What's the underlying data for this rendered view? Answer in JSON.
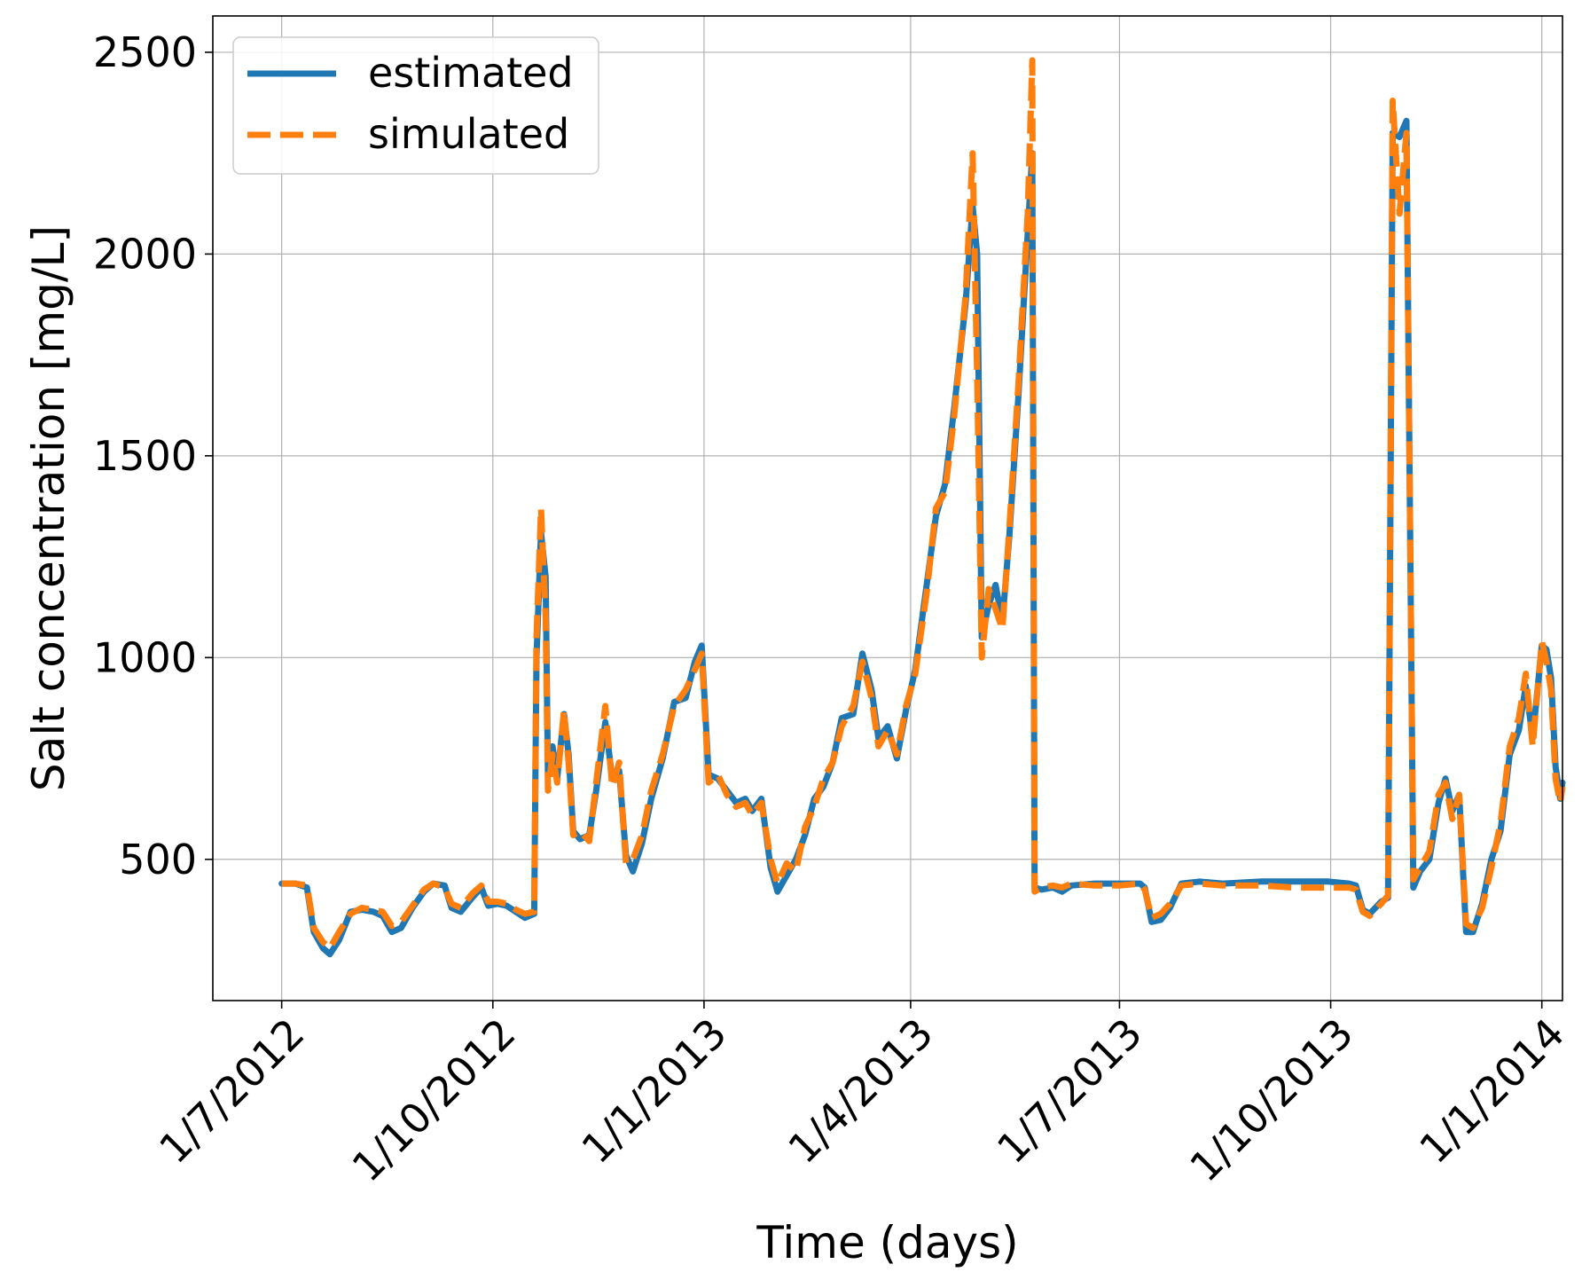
{
  "chart_data": {
    "type": "line",
    "title": "",
    "xlabel": "Time (days)",
    "ylabel": "Salt concentration [mg/L]",
    "ylim": [
      150,
      2590
    ],
    "xlim": [
      "2012-06-01",
      "2014-01-10"
    ],
    "grid": true,
    "legend_position": "top-left",
    "x_ticks": [
      {
        "date": "2012-07-01",
        "label": "1/7/2012"
      },
      {
        "date": "2012-10-01",
        "label": "1/10/2012"
      },
      {
        "date": "2013-01-01",
        "label": "1/1/2013"
      },
      {
        "date": "2013-04-01",
        "label": "1/4/2013"
      },
      {
        "date": "2013-07-01",
        "label": "1/7/2013"
      },
      {
        "date": "2013-10-01",
        "label": "1/10/2013"
      },
      {
        "date": "2014-01-01",
        "label": "1/1/2014"
      }
    ],
    "y_ticks": [
      500,
      1000,
      1500,
      2000,
      2500
    ],
    "series": [
      {
        "name": "estimated",
        "color": "#1f77b4",
        "style": "solid",
        "points": [
          [
            "2012-07-01",
            440
          ],
          [
            "2012-07-07",
            440
          ],
          [
            "2012-07-12",
            430
          ],
          [
            "2012-07-15",
            320
          ],
          [
            "2012-07-19",
            280
          ],
          [
            "2012-07-22",
            265
          ],
          [
            "2012-07-26",
            300
          ],
          [
            "2012-07-31",
            370
          ],
          [
            "2012-08-05",
            375
          ],
          [
            "2012-08-10",
            370
          ],
          [
            "2012-08-14",
            360
          ],
          [
            "2012-08-18",
            320
          ],
          [
            "2012-08-22",
            330
          ],
          [
            "2012-08-27",
            380
          ],
          [
            "2012-09-01",
            420
          ],
          [
            "2012-09-05",
            440
          ],
          [
            "2012-09-10",
            435
          ],
          [
            "2012-09-13",
            380
          ],
          [
            "2012-09-17",
            370
          ],
          [
            "2012-09-22",
            405
          ],
          [
            "2012-09-26",
            430
          ],
          [
            "2012-09-29",
            385
          ],
          [
            "2012-10-03",
            390
          ],
          [
            "2012-10-07",
            385
          ],
          [
            "2012-10-11",
            370
          ],
          [
            "2012-10-15",
            355
          ],
          [
            "2012-10-19",
            365
          ],
          [
            "2012-10-20",
            1000
          ],
          [
            "2012-10-22",
            1310
          ],
          [
            "2012-10-24",
            1200
          ],
          [
            "2012-10-25",
            710
          ],
          [
            "2012-10-27",
            780
          ],
          [
            "2012-10-29",
            700
          ],
          [
            "2012-11-01",
            860
          ],
          [
            "2012-11-03",
            760
          ],
          [
            "2012-11-05",
            570
          ],
          [
            "2012-11-08",
            550
          ],
          [
            "2012-11-12",
            560
          ],
          [
            "2012-11-15",
            670
          ],
          [
            "2012-11-19",
            840
          ],
          [
            "2012-11-22",
            700
          ],
          [
            "2012-11-25",
            720
          ],
          [
            "2012-11-28",
            510
          ],
          [
            "2012-12-01",
            470
          ],
          [
            "2012-12-05",
            540
          ],
          [
            "2012-12-09",
            650
          ],
          [
            "2012-12-14",
            750
          ],
          [
            "2012-12-19",
            890
          ],
          [
            "2012-12-24",
            900
          ],
          [
            "2012-12-28",
            990
          ],
          [
            "2012-12-31",
            1030
          ],
          [
            "2013-01-03",
            710
          ],
          [
            "2013-01-07",
            700
          ],
          [
            "2013-01-11",
            670
          ],
          [
            "2013-01-15",
            640
          ],
          [
            "2013-01-19",
            650
          ],
          [
            "2013-01-22",
            620
          ],
          [
            "2013-01-26",
            650
          ],
          [
            "2013-01-30",
            480
          ],
          [
            "2013-02-02",
            420
          ],
          [
            "2013-02-06",
            460
          ],
          [
            "2013-02-10",
            500
          ],
          [
            "2013-02-14",
            560
          ],
          [
            "2013-02-18",
            650
          ],
          [
            "2013-02-22",
            680
          ],
          [
            "2013-02-26",
            740
          ],
          [
            "2013-03-02",
            850
          ],
          [
            "2013-03-07",
            860
          ],
          [
            "2013-03-11",
            1010
          ],
          [
            "2013-03-15",
            920
          ],
          [
            "2013-03-18",
            800
          ],
          [
            "2013-03-22",
            830
          ],
          [
            "2013-03-26",
            750
          ],
          [
            "2013-03-30",
            870
          ],
          [
            "2013-04-03",
            970
          ],
          [
            "2013-04-08",
            1180
          ],
          [
            "2013-04-12",
            1350
          ],
          [
            "2013-04-16",
            1430
          ],
          [
            "2013-04-20",
            1620
          ],
          [
            "2013-04-25",
            1880
          ],
          [
            "2013-04-28",
            2120
          ],
          [
            "2013-04-30",
            2000
          ],
          [
            "2013-05-02",
            1050
          ],
          [
            "2013-05-05",
            1130
          ],
          [
            "2013-05-08",
            1180
          ],
          [
            "2013-05-11",
            1090
          ],
          [
            "2013-05-14",
            1300
          ],
          [
            "2013-05-18",
            1650
          ],
          [
            "2013-05-22",
            2050
          ],
          [
            "2013-05-24",
            2250
          ],
          [
            "2013-05-25",
            430
          ],
          [
            "2013-05-28",
            425
          ],
          [
            "2013-06-02",
            430
          ],
          [
            "2013-06-06",
            420
          ],
          [
            "2013-06-10",
            435
          ],
          [
            "2013-06-20",
            440
          ],
          [
            "2013-07-01",
            440
          ],
          [
            "2013-07-10",
            440
          ],
          [
            "2013-07-12",
            430
          ],
          [
            "2013-07-15",
            345
          ],
          [
            "2013-07-19",
            350
          ],
          [
            "2013-07-23",
            380
          ],
          [
            "2013-07-28",
            440
          ],
          [
            "2013-08-05",
            445
          ],
          [
            "2013-08-15",
            440
          ],
          [
            "2013-09-01",
            445
          ],
          [
            "2013-09-15",
            445
          ],
          [
            "2013-09-30",
            445
          ],
          [
            "2013-10-09",
            440
          ],
          [
            "2013-10-12",
            435
          ],
          [
            "2013-10-15",
            375
          ],
          [
            "2013-10-18",
            365
          ],
          [
            "2013-10-23",
            395
          ],
          [
            "2013-10-26",
            405
          ],
          [
            "2013-10-28",
            2300
          ],
          [
            "2013-10-31",
            2290
          ],
          [
            "2013-11-03",
            2330
          ],
          [
            "2013-11-06",
            430
          ],
          [
            "2013-11-09",
            470
          ],
          [
            "2013-11-13",
            500
          ],
          [
            "2013-11-17",
            640
          ],
          [
            "2013-11-20",
            700
          ],
          [
            "2013-11-23",
            620
          ],
          [
            "2013-11-26",
            660
          ],
          [
            "2013-11-29",
            320
          ],
          [
            "2013-12-02",
            320
          ],
          [
            "2013-12-06",
            390
          ],
          [
            "2013-12-10",
            500
          ],
          [
            "2013-12-14",
            570
          ],
          [
            "2013-12-18",
            760
          ],
          [
            "2013-12-22",
            820
          ],
          [
            "2013-12-25",
            930
          ],
          [
            "2013-12-28",
            800
          ],
          [
            "2014-01-01",
            1030
          ],
          [
            "2014-01-03",
            1020
          ],
          [
            "2014-01-05",
            950
          ],
          [
            "2014-01-07",
            730
          ],
          [
            "2014-01-09",
            650
          ],
          [
            "2014-01-10",
            690
          ]
        ]
      },
      {
        "name": "simulated",
        "color": "#ff7f0e",
        "style": "dashed",
        "points": [
          [
            "2012-07-01",
            440
          ],
          [
            "2012-07-07",
            440
          ],
          [
            "2012-07-12",
            435
          ],
          [
            "2012-07-15",
            330
          ],
          [
            "2012-07-19",
            295
          ],
          [
            "2012-07-22",
            280
          ],
          [
            "2012-07-26",
            320
          ],
          [
            "2012-07-31",
            365
          ],
          [
            "2012-08-05",
            380
          ],
          [
            "2012-08-10",
            375
          ],
          [
            "2012-08-14",
            370
          ],
          [
            "2012-08-18",
            335
          ],
          [
            "2012-08-22",
            345
          ],
          [
            "2012-08-27",
            385
          ],
          [
            "2012-09-01",
            425
          ],
          [
            "2012-09-05",
            440
          ],
          [
            "2012-09-10",
            430
          ],
          [
            "2012-09-13",
            390
          ],
          [
            "2012-09-17",
            380
          ],
          [
            "2012-09-22",
            415
          ],
          [
            "2012-09-26",
            435
          ],
          [
            "2012-09-29",
            395
          ],
          [
            "2012-10-03",
            395
          ],
          [
            "2012-10-07",
            390
          ],
          [
            "2012-10-11",
            375
          ],
          [
            "2012-10-15",
            365
          ],
          [
            "2012-10-19",
            370
          ],
          [
            "2012-10-20",
            1050
          ],
          [
            "2012-10-22",
            1370
          ],
          [
            "2012-10-24",
            1100
          ],
          [
            "2012-10-25",
            670
          ],
          [
            "2012-10-27",
            760
          ],
          [
            "2012-10-29",
            690
          ],
          [
            "2012-11-01",
            870
          ],
          [
            "2012-11-03",
            740
          ],
          [
            "2012-11-05",
            560
          ],
          [
            "2012-11-08",
            570
          ],
          [
            "2012-11-12",
            545
          ],
          [
            "2012-11-15",
            690
          ],
          [
            "2012-11-19",
            880
          ],
          [
            "2012-11-22",
            680
          ],
          [
            "2012-11-25",
            740
          ],
          [
            "2012-11-28",
            490
          ],
          [
            "2012-12-01",
            500
          ],
          [
            "2012-12-05",
            560
          ],
          [
            "2012-12-09",
            670
          ],
          [
            "2012-12-14",
            760
          ],
          [
            "2012-12-19",
            880
          ],
          [
            "2012-12-24",
            920
          ],
          [
            "2012-12-28",
            970
          ],
          [
            "2012-12-31",
            1010
          ],
          [
            "2013-01-03",
            690
          ],
          [
            "2013-01-07",
            710
          ],
          [
            "2013-01-11",
            660
          ],
          [
            "2013-01-15",
            630
          ],
          [
            "2013-01-19",
            640
          ],
          [
            "2013-01-22",
            610
          ],
          [
            "2013-01-26",
            640
          ],
          [
            "2013-01-30",
            500
          ],
          [
            "2013-02-02",
            440
          ],
          [
            "2013-02-06",
            490
          ],
          [
            "2013-02-10",
            470
          ],
          [
            "2013-02-14",
            580
          ],
          [
            "2013-02-18",
            630
          ],
          [
            "2013-02-22",
            700
          ],
          [
            "2013-02-26",
            740
          ],
          [
            "2013-03-02",
            830
          ],
          [
            "2013-03-07",
            880
          ],
          [
            "2013-03-11",
            990
          ],
          [
            "2013-03-15",
            900
          ],
          [
            "2013-03-18",
            780
          ],
          [
            "2013-03-22",
            820
          ],
          [
            "2013-03-26",
            760
          ],
          [
            "2013-03-30",
            880
          ],
          [
            "2013-04-03",
            960
          ],
          [
            "2013-04-08",
            1160
          ],
          [
            "2013-04-12",
            1370
          ],
          [
            "2013-04-16",
            1410
          ],
          [
            "2013-04-20",
            1600
          ],
          [
            "2013-04-25",
            1900
          ],
          [
            "2013-04-28",
            2250
          ],
          [
            "2013-04-30",
            1700
          ],
          [
            "2013-05-02",
            1000
          ],
          [
            "2013-05-05",
            1170
          ],
          [
            "2013-05-08",
            1120
          ],
          [
            "2013-05-11",
            1070
          ],
          [
            "2013-05-14",
            1320
          ],
          [
            "2013-05-18",
            1680
          ],
          [
            "2013-05-22",
            2100
          ],
          [
            "2013-05-24",
            2480
          ],
          [
            "2013-05-25",
            420
          ],
          [
            "2013-05-28",
            430
          ],
          [
            "2013-06-02",
            435
          ],
          [
            "2013-06-06",
            430
          ],
          [
            "2013-06-10",
            440
          ],
          [
            "2013-06-20",
            435
          ],
          [
            "2013-07-01",
            435
          ],
          [
            "2013-07-10",
            440
          ],
          [
            "2013-07-12",
            425
          ],
          [
            "2013-07-15",
            355
          ],
          [
            "2013-07-19",
            365
          ],
          [
            "2013-07-23",
            390
          ],
          [
            "2013-07-28",
            435
          ],
          [
            "2013-08-05",
            440
          ],
          [
            "2013-08-15",
            435
          ],
          [
            "2013-09-01",
            435
          ],
          [
            "2013-09-15",
            430
          ],
          [
            "2013-09-30",
            430
          ],
          [
            "2013-10-09",
            430
          ],
          [
            "2013-10-12",
            425
          ],
          [
            "2013-10-15",
            370
          ],
          [
            "2013-10-18",
            360
          ],
          [
            "2013-10-23",
            390
          ],
          [
            "2013-10-26",
            410
          ],
          [
            "2013-10-28",
            2380
          ],
          [
            "2013-10-31",
            2100
          ],
          [
            "2013-11-03",
            2300
          ],
          [
            "2013-11-06",
            450
          ],
          [
            "2013-11-09",
            480
          ],
          [
            "2013-11-13",
            520
          ],
          [
            "2013-11-17",
            660
          ],
          [
            "2013-11-20",
            690
          ],
          [
            "2013-11-23",
            600
          ],
          [
            "2013-11-26",
            660
          ],
          [
            "2013-11-29",
            340
          ],
          [
            "2013-12-02",
            330
          ],
          [
            "2013-12-06",
            380
          ],
          [
            "2013-12-10",
            480
          ],
          [
            "2013-12-14",
            590
          ],
          [
            "2013-12-18",
            780
          ],
          [
            "2013-12-22",
            850
          ],
          [
            "2013-12-25",
            960
          ],
          [
            "2013-12-28",
            780
          ],
          [
            "2014-01-01",
            1040
          ],
          [
            "2014-01-03",
            990
          ],
          [
            "2014-01-05",
            920
          ],
          [
            "2014-01-07",
            700
          ],
          [
            "2014-01-09",
            640
          ],
          [
            "2014-01-10",
            680
          ]
        ]
      }
    ]
  }
}
